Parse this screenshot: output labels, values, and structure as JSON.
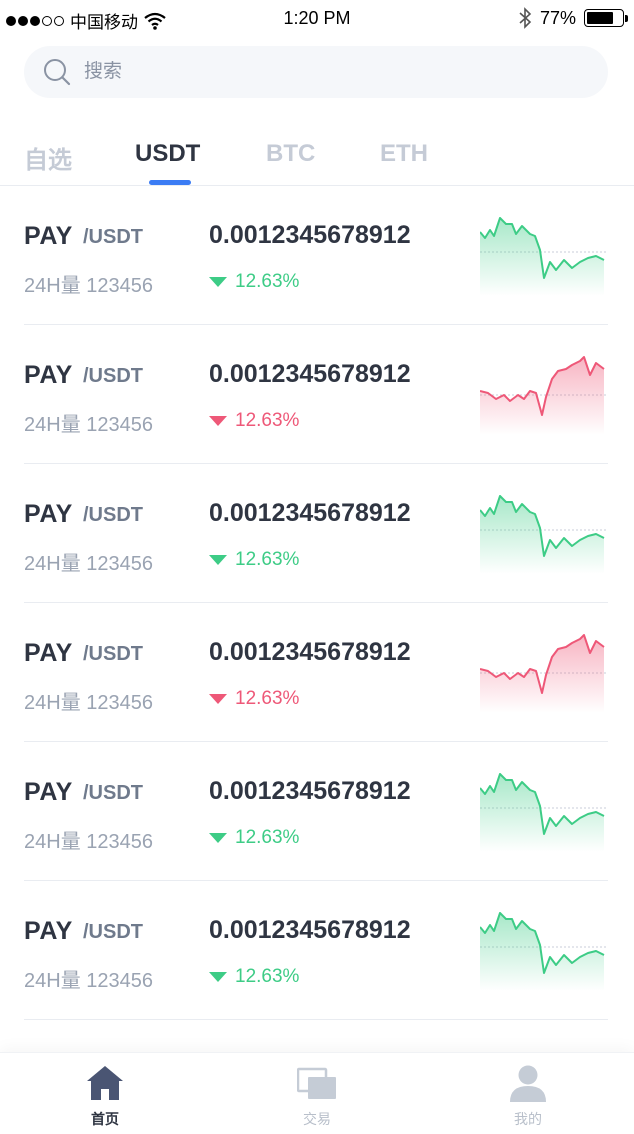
{
  "status_bar": {
    "carrier": "中国移动",
    "time": "1:20 PM",
    "battery": "77%",
    "battery_level": 0.77
  },
  "search": {
    "placeholder": "搜索"
  },
  "tabs": [
    {
      "label": "自选",
      "active": false
    },
    {
      "label": "USDT",
      "active": true
    },
    {
      "label": "BTC",
      "active": false
    },
    {
      "label": "ETH",
      "active": false
    }
  ],
  "markets": [
    {
      "base": "PAY",
      "quote": "/USDT",
      "volume": "24H量 123456",
      "price": "0.0012345678912",
      "change": "12.63%",
      "trend": "up"
    },
    {
      "base": "PAY",
      "quote": "/USDT",
      "volume": "24H量 123456",
      "price": "0.0012345678912",
      "change": "12.63%",
      "trend": "down"
    },
    {
      "base": "PAY",
      "quote": "/USDT",
      "volume": "24H量 123456",
      "price": "0.0012345678912",
      "change": "12.63%",
      "trend": "up"
    },
    {
      "base": "PAY",
      "quote": "/USDT",
      "volume": "24H量 123456",
      "price": "0.0012345678912",
      "change": "12.63%",
      "trend": "down"
    },
    {
      "base": "PAY",
      "quote": "/USDT",
      "volume": "24H量 123456",
      "price": "0.0012345678912",
      "change": "12.63%",
      "trend": "up"
    },
    {
      "base": "PAY",
      "quote": "/USDT",
      "volume": "24H量 123456",
      "price": "0.0012345678912",
      "change": "12.63%",
      "trend": "up"
    }
  ],
  "colors": {
    "up": "#3dcc86",
    "down": "#ee5878",
    "accent": "#3b7cf4",
    "nav_active": "#4a5573",
    "nav_inactive": "#c5ccd6"
  },
  "bottom_nav": [
    {
      "label": "首页",
      "icon": "home-icon",
      "active": true
    },
    {
      "label": "交易",
      "icon": "exchange-icon",
      "active": false
    },
    {
      "label": "我的",
      "icon": "user-icon",
      "active": false
    }
  ]
}
